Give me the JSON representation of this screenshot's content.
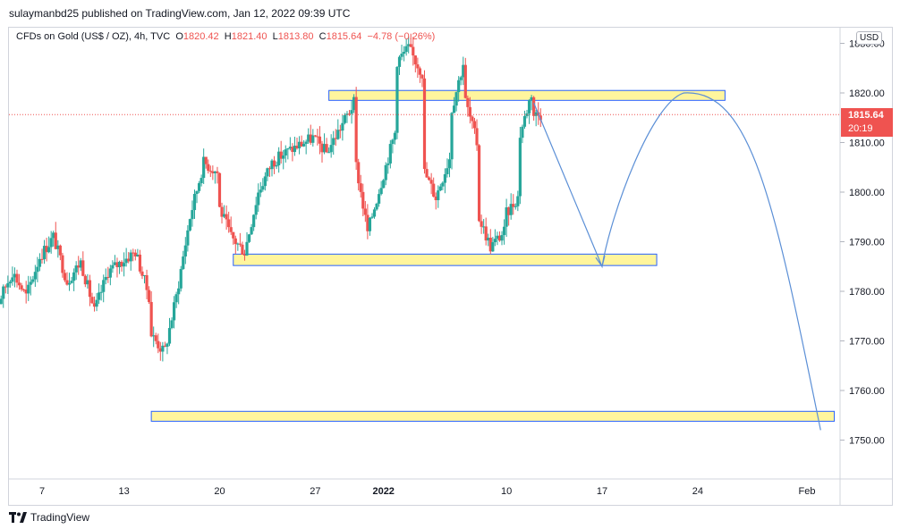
{
  "header": {
    "text": "sulaymanbd25 published on TradingView.com, Jan 12, 2022 09:39 UTC"
  },
  "symbol": {
    "name": "CFDs on Gold (US$ / OZ), 4h, TVC",
    "open_label": "O",
    "open": "1820.42",
    "high_label": "H",
    "high": "1821.40",
    "low_label": "L",
    "low": "1813.80",
    "close_label": "C",
    "close": "1815.64",
    "change": "−4.78 (−0.26%)"
  },
  "currency": "USD",
  "price_tag": {
    "price": "1815.64",
    "countdown": "20:19"
  },
  "footer": {
    "brand": "TradingView"
  },
  "colors": {
    "up": "#26a69a",
    "down": "#ef5350",
    "zone_fill": "#fff59d",
    "zone_stroke": "#2962ff",
    "projection": "#5b8fd6",
    "price_line": "#ef5350"
  },
  "chart_data": {
    "type": "candlestick",
    "title": "CFDs on Gold (US$ / OZ), 4h, TVC",
    "y_range": [
      1742,
      1835
    ],
    "y_ticks": [
      "1830.00",
      "1820.00",
      "1810.00",
      "1800.00",
      "1790.00",
      "1780.00",
      "1770.00",
      "1760.00",
      "1750.00"
    ],
    "y_tick_values": [
      1830,
      1820,
      1810,
      1800,
      1790,
      1780,
      1770,
      1760,
      1750
    ],
    "x_range_days": [
      "2021-12-03",
      "2022-02-02"
    ],
    "x_ticks": [
      {
        "date": "2021-12-07",
        "label": "7",
        "bold": false
      },
      {
        "date": "2021-12-13",
        "label": "13",
        "bold": false
      },
      {
        "date": "2021-12-20",
        "label": "20",
        "bold": false
      },
      {
        "date": "2021-12-27",
        "label": "27",
        "bold": false
      },
      {
        "date": "2022-01-01",
        "label": "2022",
        "bold": true
      },
      {
        "date": "2022-01-10",
        "label": "10",
        "bold": false
      },
      {
        "date": "2022-01-17",
        "label": "17",
        "bold": false
      },
      {
        "date": "2022-01-24",
        "label": "24",
        "bold": false
      },
      {
        "date": "2022-02-01",
        "label": "Feb",
        "bold": false
      }
    ],
    "current_price": 1815.64,
    "price_path": [
      [
        "2021-12-03",
        1769
      ],
      [
        "2021-12-03",
        1781
      ],
      [
        "2021-12-04",
        1778
      ],
      [
        "2021-12-05",
        1784
      ],
      [
        "2021-12-06",
        1779
      ],
      [
        "2021-12-07",
        1787
      ],
      [
        "2021-12-08",
        1791
      ],
      [
        "2021-12-09",
        1782
      ],
      [
        "2021-12-10",
        1786
      ],
      [
        "2021-12-11",
        1776
      ],
      [
        "2021-12-12",
        1784
      ],
      [
        "2021-12-13",
        1786
      ],
      [
        "2021-12-14",
        1788
      ],
      [
        "2021-12-15",
        1779
      ],
      [
        "2021-12-15",
        1772
      ],
      [
        "2021-12-16",
        1768
      ],
      [
        "2021-12-16",
        1766
      ],
      [
        "2021-12-17",
        1779
      ],
      [
        "2021-12-18",
        1795
      ],
      [
        "2021-12-19",
        1806
      ],
      [
        "2021-12-20",
        1804
      ],
      [
        "2021-12-20",
        1798
      ],
      [
        "2021-12-21",
        1791
      ],
      [
        "2021-12-22",
        1788
      ],
      [
        "2021-12-23",
        1800
      ],
      [
        "2021-12-24",
        1806
      ],
      [
        "2021-12-25",
        1808
      ],
      [
        "2021-12-27",
        1811
      ],
      [
        "2021-12-28",
        1808
      ],
      [
        "2021-12-29",
        1813
      ],
      [
        "2021-12-30",
        1818
      ],
      [
        "2021-12-30",
        1808
      ],
      [
        "2021-12-31",
        1792
      ],
      [
        "2022-01-01",
        1802
      ],
      [
        "2022-01-02",
        1812
      ],
      [
        "2022-01-02",
        1826
      ],
      [
        "2022-01-03",
        1829
      ],
      [
        "2022-01-04",
        1824
      ],
      [
        "2022-01-04",
        1805
      ],
      [
        "2022-01-05",
        1799
      ],
      [
        "2022-01-06",
        1807
      ],
      [
        "2022-01-06",
        1815
      ],
      [
        "2022-01-07",
        1826
      ],
      [
        "2022-01-07",
        1820
      ],
      [
        "2022-01-08",
        1810
      ],
      [
        "2022-01-08",
        1796
      ],
      [
        "2022-01-09",
        1789
      ],
      [
        "2022-01-10",
        1792
      ],
      [
        "2022-01-10",
        1795
      ],
      [
        "2022-01-11",
        1799
      ],
      [
        "2022-01-11",
        1810
      ],
      [
        "2022-01-12",
        1820
      ],
      [
        "2022-01-12",
        1815.64
      ]
    ],
    "zones": [
      {
        "name": "resistance",
        "start": "2021-12-28",
        "end": "2022-01-26",
        "low": 1818.5,
        "high": 1820.5
      },
      {
        "name": "support",
        "start": "2021-12-21",
        "end": "2022-01-21",
        "low": 1785.2,
        "high": 1787.5
      },
      {
        "name": "target",
        "start": "2021-12-15",
        "end": "2022-02-03",
        "low": 1753.8,
        "high": 1755.8
      }
    ],
    "projection": [
      [
        "2022-01-12",
        1818
      ],
      [
        "2022-01-17",
        1785
      ],
      [
        "2022-01-20",
        1808
      ],
      [
        "2022-01-23",
        1820
      ],
      [
        "2022-01-26",
        1815
      ],
      [
        "2022-01-29",
        1790
      ],
      [
        "2022-02-02",
        1752
      ]
    ]
  }
}
